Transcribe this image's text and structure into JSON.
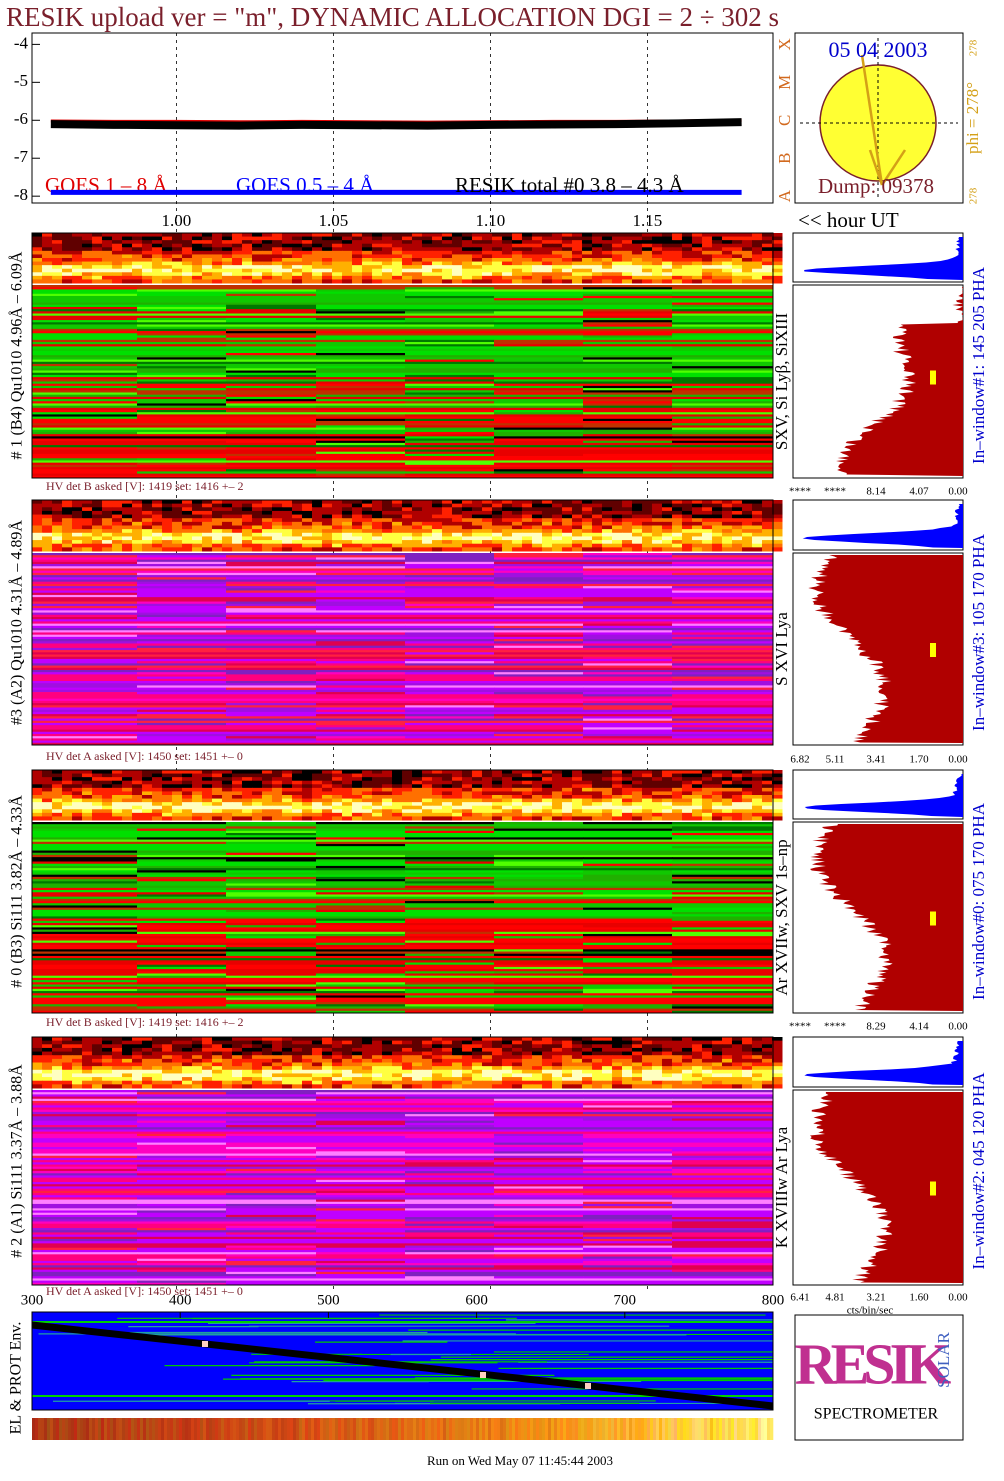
{
  "title": "RESIK upload ver = \"m\", DYNAMIC ALLOCATION  DGI =   2 ÷ 302 s",
  "chart_data": {
    "type": "line",
    "x": [
      0.96,
      0.98,
      1.0,
      1.02,
      1.04,
      1.06,
      1.08,
      1.1,
      1.12,
      1.14,
      1.16,
      1.18
    ],
    "series": [
      {
        "name": "GOES 1 – 8 Å",
        "color": "#e00000",
        "values": [
          -6.02,
          -6.03,
          -6.03,
          -6.04,
          -6.03,
          -6.04,
          -6.05,
          -6.04,
          -6.03,
          -6.03,
          -6.02,
          -6.0
        ]
      },
      {
        "name": "GOES 0.5 – 4 Å",
        "color": "#0000ff",
        "values": [
          -7.9,
          -7.9,
          -7.9,
          -7.9,
          -7.9,
          -7.9,
          -7.9,
          -7.9,
          -7.9,
          -7.9,
          -7.9,
          -7.9
        ]
      },
      {
        "name": "RESIK total #0  3.8 – 4.3 Å",
        "color": "#000000",
        "values": [
          -6.1,
          -6.12,
          -6.13,
          -6.14,
          -6.12,
          -6.13,
          -6.14,
          -6.12,
          -6.11,
          -6.1,
          -6.08,
          -6.05
        ]
      }
    ],
    "xlim": [
      0.954,
      1.19
    ],
    "ylim": [
      -8.18,
      -3.7
    ],
    "xticks": [
      {
        "value": 1.0,
        "label": "1.00"
      },
      {
        "value": 1.05,
        "label": "1.05"
      },
      {
        "value": 1.1,
        "label": "1.10"
      },
      {
        "value": 1.15,
        "label": "1.15"
      }
    ],
    "yticks": [
      -4,
      -5,
      -6,
      -7,
      -8
    ],
    "grid": true,
    "x_label": "<< hour UT"
  },
  "sun": {
    "date": "05 04 2003",
    "dump": "Dump: 09378",
    "phi": "phi = 278°",
    "phi_small": "278",
    "phi_bottom": "278",
    "classes": [
      "A",
      "B",
      "C",
      "M",
      "X"
    ]
  },
  "panels": [
    {
      "detector": "# 1 (B4) Qu1010 4.96Å – 6.09Å",
      "lines": "SXV, Si Lyβ, SiXIII",
      "hv": "HV det B asked [V]:  1419 set:  1416 +–   2",
      "window": "In–window#1:  145 205 PHA",
      "hist_ticks": [
        "****",
        "****",
        "8.14",
        "4.07",
        "0.00"
      ]
    },
    {
      "detector": "#3 (A2) Qu1010  4.31Å – 4.89Å",
      "lines": "S XVI Lya",
      "hv": "HV det A asked [V]:  1450 set:  1451 +–   0",
      "window": "In–window#3:  105 170 PHA",
      "hist_ticks": [
        "6.82",
        "5.11",
        "3.41",
        "1.70",
        "0.00"
      ]
    },
    {
      "detector": "# 0 (B3) Si111  3.82Å – 4.33Å",
      "lines": "Ar XVIIw,  SXV 1s–np",
      "hv": "HV det B asked [V]:  1419 set:  1416 +–   2",
      "window": "In–window#0:  075 170 PHA",
      "hist_ticks": [
        "****",
        "****",
        "8.29",
        "4.14",
        "0.00"
      ]
    },
    {
      "detector": "# 2 (A1) Si111  3.37Å – 3.88Å",
      "lines": "K XVIIIw  Ar Lya",
      "hv": "HV det A asked [V]:  1450 set:  1451 +–   0",
      "window": "In–window#2:  045 120 PHA",
      "hist_ticks": [
        "6.41",
        "4.81",
        "3.21",
        "1.60",
        "0.00"
      ]
    }
  ],
  "hist_unit": "cts/bin/sec",
  "bottom": {
    "label": "EL & PROT Env.",
    "xlim": [
      300,
      800
    ],
    "xticks": [
      300,
      400,
      500,
      600,
      700,
      800
    ]
  },
  "logo": {
    "middle": "RESIK",
    "side": "SOLAR",
    "bottom": "SPECTROMETER"
  },
  "footer": "Run on Wed May 07 11:45:44 2003"
}
